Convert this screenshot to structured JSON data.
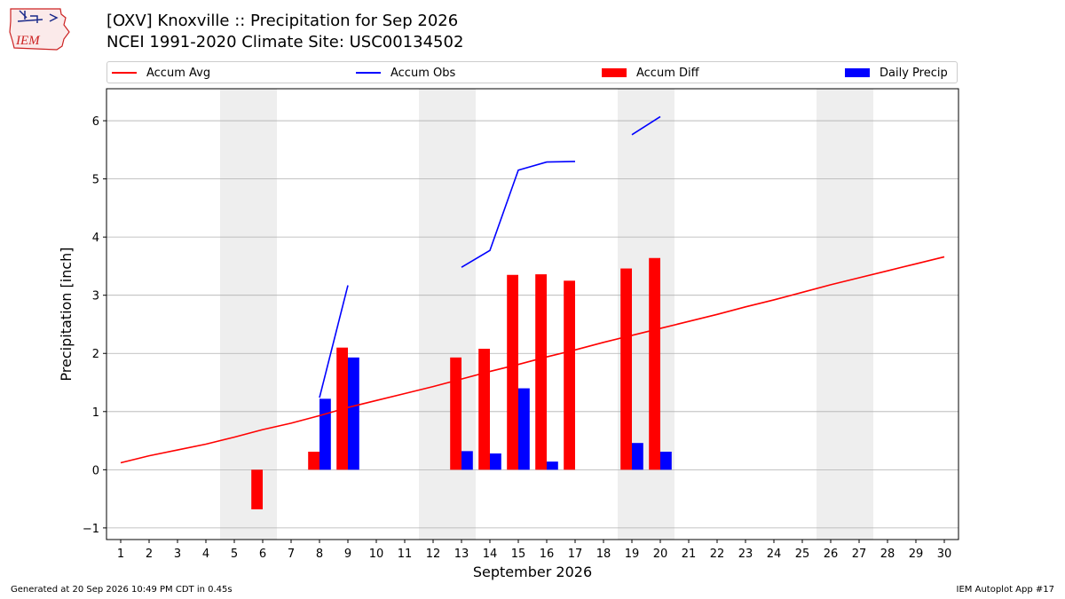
{
  "title_line1": "[OXV] Knoxville :: Precipitation for Sep 2026",
  "title_line2": "NCEI 1991-2020 Climate Site: USC00134502",
  "logo_text": "IEM",
  "footer_left": "Generated at 20 Sep 2026 10:49 PM CDT in 0.45s",
  "footer_right": "IEM Autoplot App #17",
  "colors": {
    "accum_avg": "#ff0000",
    "accum_obs": "#0000ff",
    "accum_diff": "#ff0000",
    "daily_precip": "#0000ff",
    "weekend_shade": "#eeeeee",
    "grid": "#b0b0b0"
  },
  "legend": [
    {
      "label": "Accum Avg",
      "kind": "line",
      "color": "#ff0000"
    },
    {
      "label": "Accum Obs",
      "kind": "line",
      "color": "#0000ff"
    },
    {
      "label": "Accum Diff",
      "kind": "box",
      "color": "#ff0000"
    },
    {
      "label": "Daily Precip",
      "kind": "box",
      "color": "#0000ff"
    }
  ],
  "chart_data": {
    "type": "bar",
    "xlabel": "September 2026",
    "ylabel": "Precipitation [inch]",
    "xlim": [
      0.5,
      30.5
    ],
    "ylim": [
      -1.2,
      6.55
    ],
    "x_ticks": [
      1,
      2,
      3,
      4,
      5,
      6,
      7,
      8,
      9,
      10,
      11,
      12,
      13,
      14,
      15,
      16,
      17,
      18,
      19,
      20,
      21,
      22,
      23,
      24,
      25,
      26,
      27,
      28,
      29,
      30
    ],
    "y_ticks": [
      -1,
      0,
      1,
      2,
      3,
      4,
      5,
      6
    ],
    "y_tick_labels": [
      "−1",
      "0",
      "1",
      "2",
      "3",
      "4",
      "5",
      "6"
    ],
    "grid": "horizontal",
    "legend_position": "top",
    "weekend_shaded_days": [
      [
        5,
        6
      ],
      [
        12,
        13
      ],
      [
        19,
        20
      ],
      [
        26,
        27
      ]
    ],
    "accum_avg": {
      "x": [
        1,
        2,
        3,
        4,
        5,
        6,
        7,
        8,
        9,
        10,
        11,
        12,
        13,
        14,
        15,
        16,
        17,
        18,
        19,
        20,
        21,
        22,
        23,
        24,
        25,
        26,
        27,
        28,
        29,
        30
      ],
      "y": [
        0.12,
        0.24,
        0.34,
        0.44,
        0.56,
        0.69,
        0.8,
        0.93,
        1.07,
        1.19,
        1.31,
        1.43,
        1.56,
        1.69,
        1.81,
        1.94,
        2.06,
        2.19,
        2.31,
        2.43,
        2.55,
        2.67,
        2.8,
        2.92,
        3.05,
        3.18,
        3.3,
        3.42,
        3.54,
        3.66
      ]
    },
    "accum_obs_segments": [
      {
        "x": [
          8,
          9
        ],
        "y": [
          1.24,
          3.17
        ]
      },
      {
        "x": [
          13,
          14,
          15,
          16,
          17
        ],
        "y": [
          3.48,
          3.77,
          5.15,
          5.29,
          5.3
        ]
      },
      {
        "x": [
          19,
          20
        ],
        "y": [
          5.76,
          6.07
        ]
      }
    ],
    "series": [
      {
        "name": "Accum Diff",
        "x": [
          6,
          8,
          9,
          13,
          14,
          15,
          16,
          17,
          19,
          20
        ],
        "values": [
          -0.68,
          0.31,
          2.1,
          1.93,
          2.08,
          3.35,
          3.36,
          3.25,
          3.46,
          3.64
        ]
      },
      {
        "name": "Daily Precip",
        "x": [
          8,
          9,
          13,
          14,
          15,
          16,
          19,
          20
        ],
        "values": [
          1.22,
          1.93,
          0.32,
          0.28,
          1.4,
          0.14,
          0.46,
          0.31
        ]
      }
    ]
  }
}
